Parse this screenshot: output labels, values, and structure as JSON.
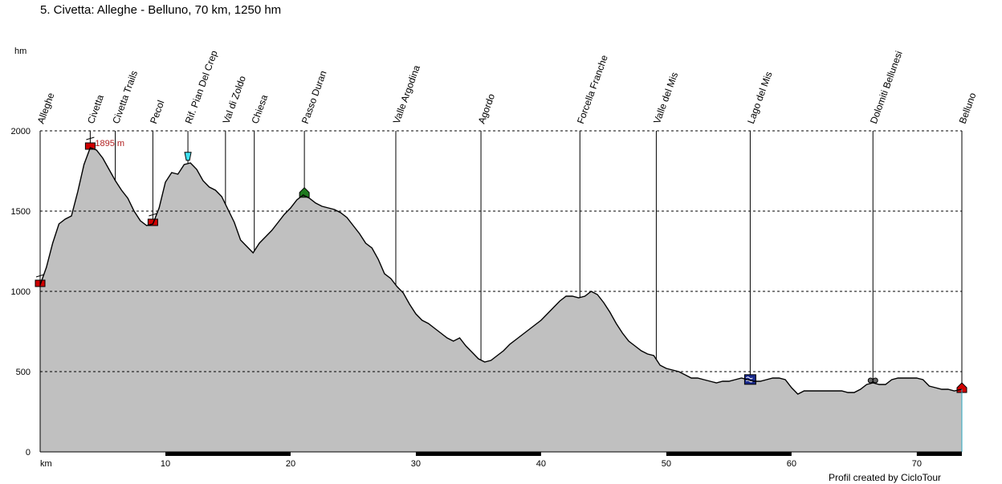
{
  "title": "5. Civetta: Alleghe - Belluno, 70 km, 1250 hm",
  "credit": "Profil created by CicloTour",
  "chart_data": {
    "type": "area",
    "ylabel": "hm",
    "xlabel": "km",
    "xlim": [
      0,
      73.6
    ],
    "ylim": [
      0,
      2000
    ],
    "x_ticks": [
      10,
      20,
      30,
      40,
      50,
      60,
      70
    ],
    "y_ticks": [
      0,
      500,
      1000,
      1500,
      2000
    ],
    "grid": true,
    "max_label": "1895 m",
    "max_point": [
      4,
      1895
    ],
    "colors": {
      "fill": "#c0c0c0",
      "line": "#000000",
      "grid": "#000000",
      "max_label": "#b22222"
    },
    "waypoints": [
      {
        "name": "Alleghe",
        "km": 0.0,
        "icon": "cable-car-icon"
      },
      {
        "name": "Civetta",
        "km": 4.0,
        "icon": "cable-car-icon"
      },
      {
        "name": "Civetta Trails",
        "km": 6.0
      },
      {
        "name": "Pecol",
        "km": 9.0,
        "icon": "cable-car-icon"
      },
      {
        "name": "Rif. Pian Del Crep",
        "km": 11.8,
        "icon": "drink-icon"
      },
      {
        "name": "Val di Zoldo",
        "km": 14.8
      },
      {
        "name": "Chiesa",
        "km": 17.1
      },
      {
        "name": "Passo Duran",
        "km": 21.1,
        "icon": "hut-icon"
      },
      {
        "name": "Valle Argodina",
        "km": 28.4
      },
      {
        "name": "Agordo",
        "km": 35.2
      },
      {
        "name": "Forcella Franche",
        "km": 43.1
      },
      {
        "name": "Valle del Mis",
        "km": 49.2
      },
      {
        "name": "Lago del Mis",
        "km": 56.7,
        "icon": "lake-icon"
      },
      {
        "name": "Dolomiti Bellunesi",
        "km": 66.5,
        "icon": "binoculars-icon"
      },
      {
        "name": "Belluno",
        "km": 73.6,
        "icon": "town-icon"
      }
    ],
    "profile": [
      [
        0,
        1040
      ],
      [
        0.5,
        1150
      ],
      [
        1,
        1300
      ],
      [
        1.5,
        1420
      ],
      [
        2,
        1450
      ],
      [
        2.5,
        1470
      ],
      [
        3,
        1620
      ],
      [
        3.5,
        1790
      ],
      [
        4,
        1895
      ],
      [
        4.5,
        1880
      ],
      [
        5,
        1830
      ],
      [
        5.5,
        1760
      ],
      [
        6,
        1690
      ],
      [
        6.5,
        1630
      ],
      [
        7,
        1580
      ],
      [
        7.5,
        1500
      ],
      [
        8,
        1440
      ],
      [
        8.5,
        1410
      ],
      [
        9,
        1420
      ],
      [
        9.5,
        1520
      ],
      [
        10,
        1680
      ],
      [
        10.5,
        1740
      ],
      [
        11,
        1730
      ],
      [
        11.5,
        1790
      ],
      [
        12,
        1800
      ],
      [
        12.5,
        1760
      ],
      [
        13,
        1690
      ],
      [
        13.5,
        1650
      ],
      [
        14,
        1630
      ],
      [
        14.5,
        1590
      ],
      [
        15,
        1510
      ],
      [
        15.5,
        1430
      ],
      [
        16,
        1320
      ],
      [
        16.5,
        1280
      ],
      [
        17,
        1240
      ],
      [
        17.5,
        1300
      ],
      [
        18,
        1340
      ],
      [
        18.5,
        1380
      ],
      [
        19,
        1430
      ],
      [
        19.5,
        1480
      ],
      [
        20,
        1520
      ],
      [
        20.5,
        1570
      ],
      [
        21,
        1600
      ],
      [
        21.5,
        1580
      ],
      [
        22,
        1550
      ],
      [
        22.5,
        1530
      ],
      [
        23,
        1520
      ],
      [
        23.5,
        1510
      ],
      [
        24,
        1490
      ],
      [
        24.5,
        1460
      ],
      [
        25,
        1410
      ],
      [
        25.5,
        1360
      ],
      [
        26,
        1300
      ],
      [
        26.5,
        1270
      ],
      [
        27,
        1200
      ],
      [
        27.5,
        1110
      ],
      [
        28,
        1080
      ],
      [
        28.5,
        1030
      ],
      [
        29,
        990
      ],
      [
        29.5,
        920
      ],
      [
        30,
        860
      ],
      [
        30.5,
        820
      ],
      [
        31,
        800
      ],
      [
        31.5,
        770
      ],
      [
        32,
        740
      ],
      [
        32.5,
        710
      ],
      [
        33,
        690
      ],
      [
        33.5,
        710
      ],
      [
        34,
        660
      ],
      [
        34.5,
        620
      ],
      [
        35,
        580
      ],
      [
        35.5,
        560
      ],
      [
        36,
        570
      ],
      [
        36.5,
        600
      ],
      [
        37,
        630
      ],
      [
        37.5,
        670
      ],
      [
        38,
        700
      ],
      [
        38.5,
        730
      ],
      [
        39,
        760
      ],
      [
        39.5,
        790
      ],
      [
        40,
        820
      ],
      [
        40.5,
        860
      ],
      [
        41,
        900
      ],
      [
        41.5,
        940
      ],
      [
        42,
        970
      ],
      [
        42.5,
        970
      ],
      [
        43,
        960
      ],
      [
        43.5,
        970
      ],
      [
        44,
        1000
      ],
      [
        44.5,
        980
      ],
      [
        45,
        930
      ],
      [
        45.5,
        870
      ],
      [
        46,
        800
      ],
      [
        46.5,
        740
      ],
      [
        47,
        690
      ],
      [
        47.5,
        660
      ],
      [
        48,
        630
      ],
      [
        48.5,
        610
      ],
      [
        49,
        600
      ],
      [
        49.5,
        540
      ],
      [
        50,
        520
      ],
      [
        50.5,
        510
      ],
      [
        51,
        500
      ],
      [
        51.5,
        480
      ],
      [
        52,
        460
      ],
      [
        52.5,
        460
      ],
      [
        53,
        450
      ],
      [
        53.5,
        440
      ],
      [
        54,
        430
      ],
      [
        54.5,
        440
      ],
      [
        55,
        440
      ],
      [
        55.5,
        450
      ],
      [
        56,
        460
      ],
      [
        56.5,
        450
      ],
      [
        57,
        440
      ],
      [
        57.5,
        440
      ],
      [
        58,
        450
      ],
      [
        58.5,
        460
      ],
      [
        59,
        460
      ],
      [
        59.5,
        450
      ],
      [
        60,
        400
      ],
      [
        60.5,
        360
      ],
      [
        61,
        380
      ],
      [
        61.5,
        380
      ],
      [
        62,
        380
      ],
      [
        62.5,
        380
      ],
      [
        63,
        380
      ],
      [
        63.5,
        380
      ],
      [
        64,
        380
      ],
      [
        64.5,
        370
      ],
      [
        65,
        370
      ],
      [
        65.5,
        390
      ],
      [
        66,
        420
      ],
      [
        66.5,
        430
      ],
      [
        67,
        420
      ],
      [
        67.5,
        420
      ],
      [
        68,
        450
      ],
      [
        68.5,
        460
      ],
      [
        69,
        460
      ],
      [
        69.5,
        460
      ],
      [
        70,
        460
      ],
      [
        70.5,
        450
      ],
      [
        71,
        410
      ],
      [
        71.5,
        400
      ],
      [
        72,
        390
      ],
      [
        72.5,
        390
      ],
      [
        73,
        380
      ],
      [
        73.6,
        390
      ]
    ]
  }
}
